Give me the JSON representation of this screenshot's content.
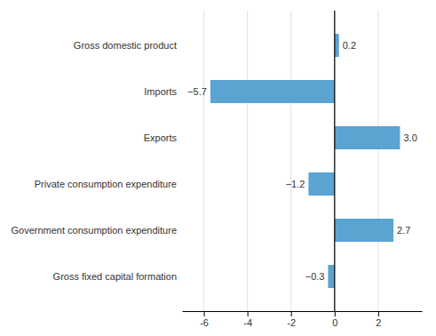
{
  "chart_data": {
    "type": "bar",
    "orientation": "horizontal",
    "categories": [
      "Gross fixed capital formation",
      "Government consumption expenditure",
      "Private consumption expenditure",
      "Exports",
      "Imports",
      "Gross domestic product"
    ],
    "values": [
      -0.3,
      2.7,
      -1.2,
      3.0,
      -5.7,
      0.2
    ],
    "value_labels": [
      "−0.3",
      "2.7",
      "−1.2",
      "3.0",
      "−5.7",
      "0.2"
    ],
    "data_labels": true,
    "color": "#5ba3d0",
    "xlim": [
      -7,
      4
    ],
    "xticks": [
      -6,
      -4,
      -2,
      0,
      2
    ],
    "grid": true
  }
}
